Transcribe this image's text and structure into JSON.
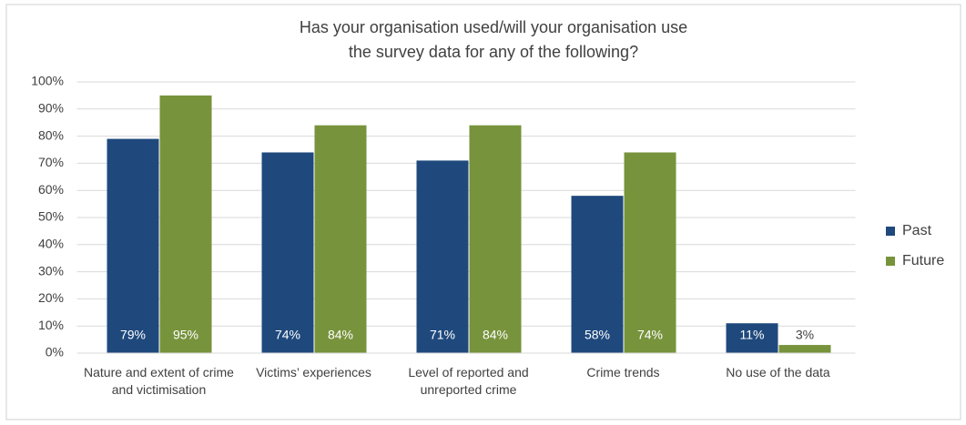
{
  "chart_data": {
    "type": "bar",
    "title": [
      "Has your organisation used/will your organisation use",
      "the survey data for any of the following?"
    ],
    "categories": [
      "Nature and extent of crime and victimisation",
      "Victims’ experiences",
      "Level of reported and unreported crime",
      "Crime trends",
      "No use of the data"
    ],
    "series": [
      {
        "name": "Past",
        "color": "#1f497d",
        "values": [
          79,
          74,
          71,
          58,
          11
        ],
        "value_labels": [
          "79%",
          "74%",
          "71%",
          "58%",
          "11%"
        ]
      },
      {
        "name": "Future",
        "color": "#77933c",
        "values": [
          95,
          84,
          84,
          74,
          3
        ],
        "value_labels": [
          "95%",
          "84%",
          "84%",
          "74%",
          "3%"
        ]
      }
    ],
    "ylim": [
      0,
      100
    ],
    "yticks": [
      {
        "value": 0,
        "label": "0%"
      },
      {
        "value": 10,
        "label": "10%"
      },
      {
        "value": 20,
        "label": "20%"
      },
      {
        "value": 30,
        "label": "30%"
      },
      {
        "value": 40,
        "label": "40%"
      },
      {
        "value": 50,
        "label": "50%"
      },
      {
        "value": 60,
        "label": "60%"
      },
      {
        "value": 70,
        "label": "70%"
      },
      {
        "value": 80,
        "label": "80%"
      },
      {
        "value": 90,
        "label": "90%"
      },
      {
        "value": 100,
        "label": "100%"
      }
    ],
    "grid": true,
    "legend": "right"
  }
}
